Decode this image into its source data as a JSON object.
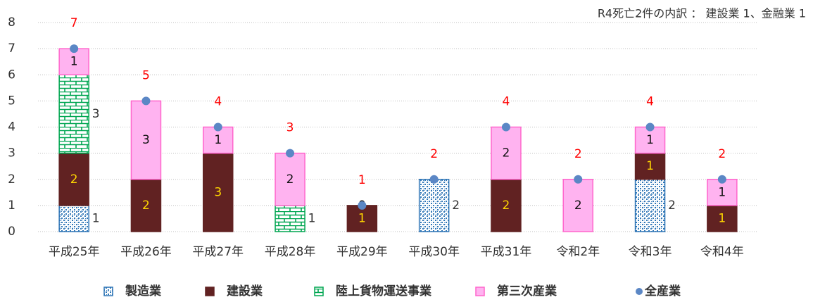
{
  "chart_data": {
    "type": "bar",
    "stacked": true,
    "annotation": "R4死亡2件の内訳 ： 建設業 1、金融業 1",
    "categories": [
      "平成25年",
      "平成26年",
      "平成27年",
      "平成28年",
      "平成29年",
      "平成30年",
      "平成31年",
      "令和2年",
      "令和3年",
      "令和4年"
    ],
    "ylim": [
      0,
      8
    ],
    "yticks": [
      0,
      1,
      2,
      3,
      4,
      5,
      6,
      7,
      8
    ],
    "grid": true,
    "legend": "bottom",
    "series": [
      {
        "name": "製造業",
        "color": "#2e75b6",
        "label_color": "#333333",
        "label_position": "right",
        "values": [
          1,
          null,
          null,
          null,
          null,
          2,
          null,
          null,
          2,
          null
        ]
      },
      {
        "name": "建設業",
        "color": "#612222",
        "label_color": "#ffd700",
        "label_position": "inside",
        "values": [
          2,
          2,
          3,
          null,
          1,
          null,
          2,
          null,
          1,
          1
        ]
      },
      {
        "name": "陸上貨物運送事業",
        "color": "#00a651",
        "label_color": "#333333",
        "label_position": "right",
        "values": [
          3,
          null,
          null,
          1,
          null,
          null,
          null,
          null,
          null,
          null
        ]
      },
      {
        "name": "第三次産業",
        "color": "#ff66cc",
        "fill": "#ffb3f0",
        "label_color": "#111111",
        "label_position": "inside",
        "values": [
          1,
          3,
          1,
          2,
          0,
          null,
          2,
          2,
          1,
          1
        ]
      },
      {
        "name": "全産業",
        "type": "scatter",
        "color": "#5b87c5",
        "label_color": "#ff0000",
        "values": [
          7,
          5,
          4,
          3,
          1,
          2,
          4,
          2,
          4,
          2
        ]
      }
    ]
  }
}
